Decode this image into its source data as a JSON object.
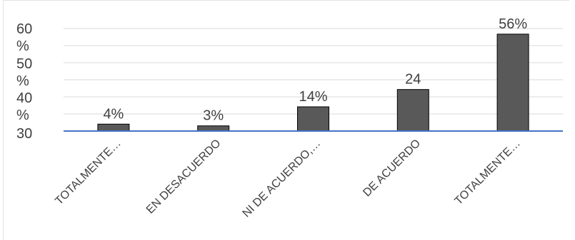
{
  "chart_data": {
    "type": "bar",
    "categories": [
      "TOTALMENTE…",
      "EN DESACUERDO",
      "NI DE ACUERDO,…",
      "DE ACUERDO",
      "TOTALMENTE…"
    ],
    "values": [
      4,
      3,
      14,
      24,
      56
    ],
    "data_labels": [
      "4%",
      "3%",
      "14%",
      "24",
      "56%"
    ],
    "y_tick_labels": [
      "60\n%",
      "50\n%",
      "40\n%",
      "30"
    ],
    "bar_color": "#595959",
    "bar_stroke": "#000000",
    "baseline_color": "#4472c4",
    "grid": true,
    "legend": "none"
  }
}
